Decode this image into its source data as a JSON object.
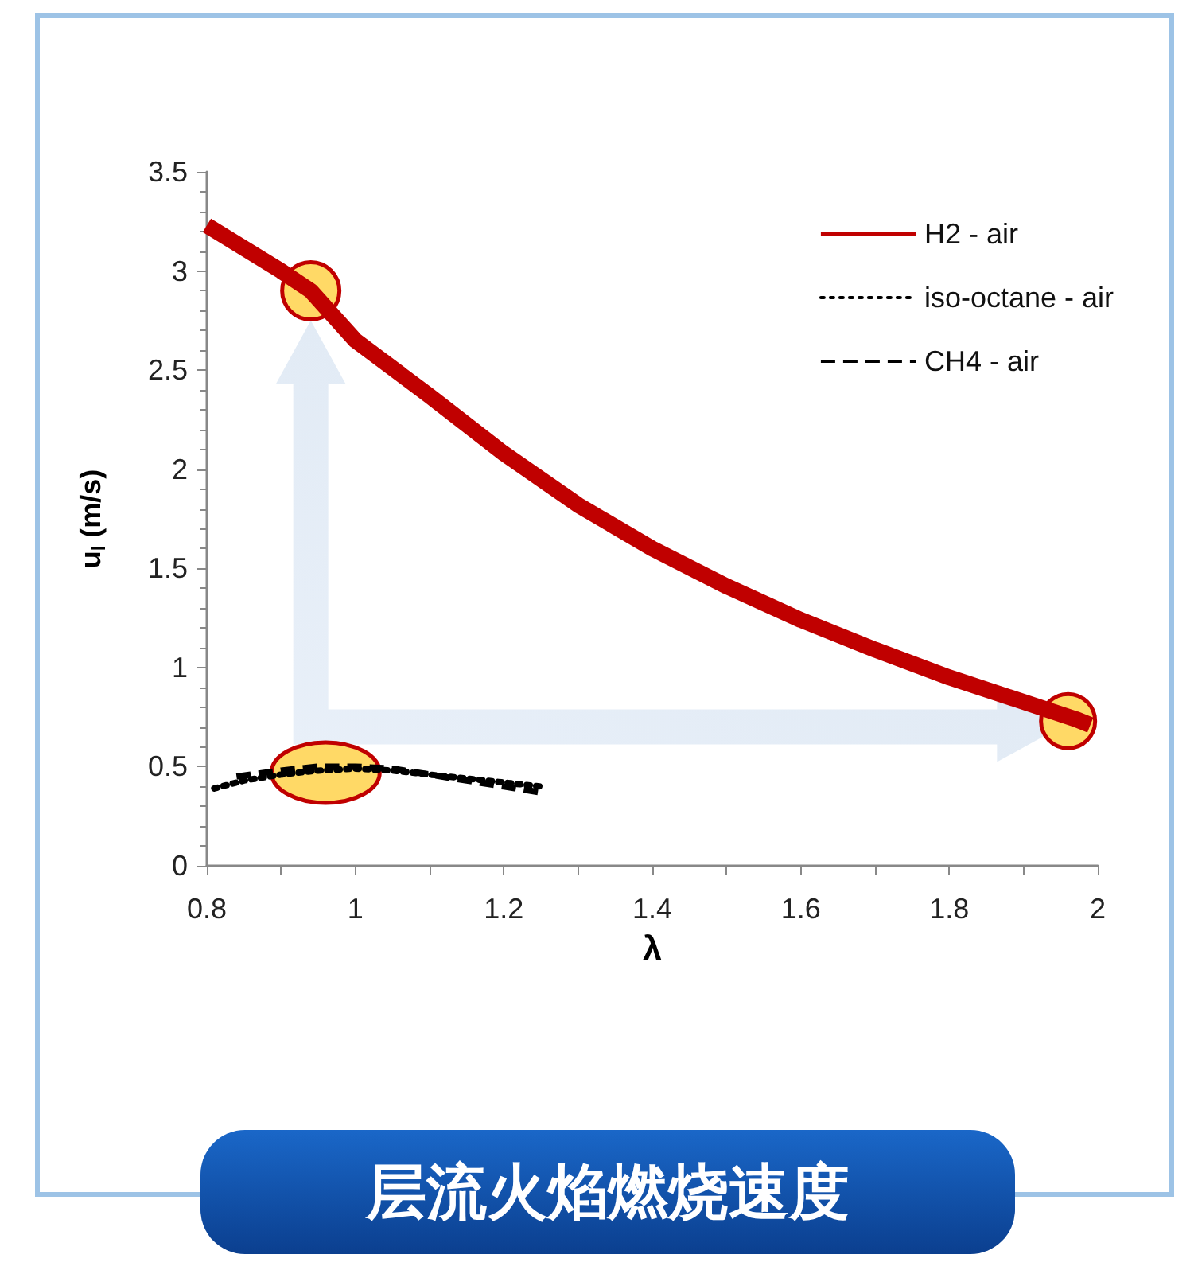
{
  "chart_data": {
    "type": "line",
    "title": "层流火焰燃烧速度",
    "xlabel": "λ",
    "ylabel": "u$_{l}$ (m/s)",
    "xlim": [
      0.8,
      2
    ],
    "xticks": [
      0.8,
      1,
      1.2,
      1.4,
      1.6,
      1.8,
      2
    ],
    "ylim": [
      0,
      3.5
    ],
    "yticks": [
      0,
      0.5,
      1,
      1.5,
      2,
      2.5,
      3,
      3.5
    ],
    "grid": false,
    "legend": "top right",
    "marker": "none",
    "series": [
      {
        "name": "H2 - air",
        "color": "#c00000",
        "line_style": "solid",
        "x": [
          0.8,
          0.9,
          0.94,
          1.0,
          1.1,
          1.2,
          1.3,
          1.4,
          1.5,
          1.6,
          1.7,
          1.8,
          1.97,
          1.99
        ],
        "values": [
          3.23,
          3.0,
          2.9,
          2.65,
          2.37,
          2.08,
          1.82,
          1.6,
          1.41,
          1.24,
          1.09,
          0.95,
          0.74,
          0.71
        ]
      },
      {
        "name": "iso-octane - air",
        "color": "#000000",
        "line_style": "dotted",
        "x": [
          0.81,
          0.85,
          0.9,
          0.95,
          1.0,
          1.05,
          1.1,
          1.15,
          1.2,
          1.25
        ],
        "values": [
          0.39,
          0.43,
          0.46,
          0.48,
          0.49,
          0.48,
          0.46,
          0.44,
          0.42,
          0.4
        ]
      },
      {
        "name": "CH4 - air",
        "color": "#000000",
        "line_style": "dashed",
        "x": [
          0.84,
          0.9,
          0.95,
          1.0,
          1.05,
          1.1,
          1.15,
          1.2,
          1.25
        ],
        "values": [
          0.45,
          0.48,
          0.5,
          0.5,
          0.49,
          0.46,
          0.43,
          0.4,
          0.37
        ]
      }
    ]
  }
}
